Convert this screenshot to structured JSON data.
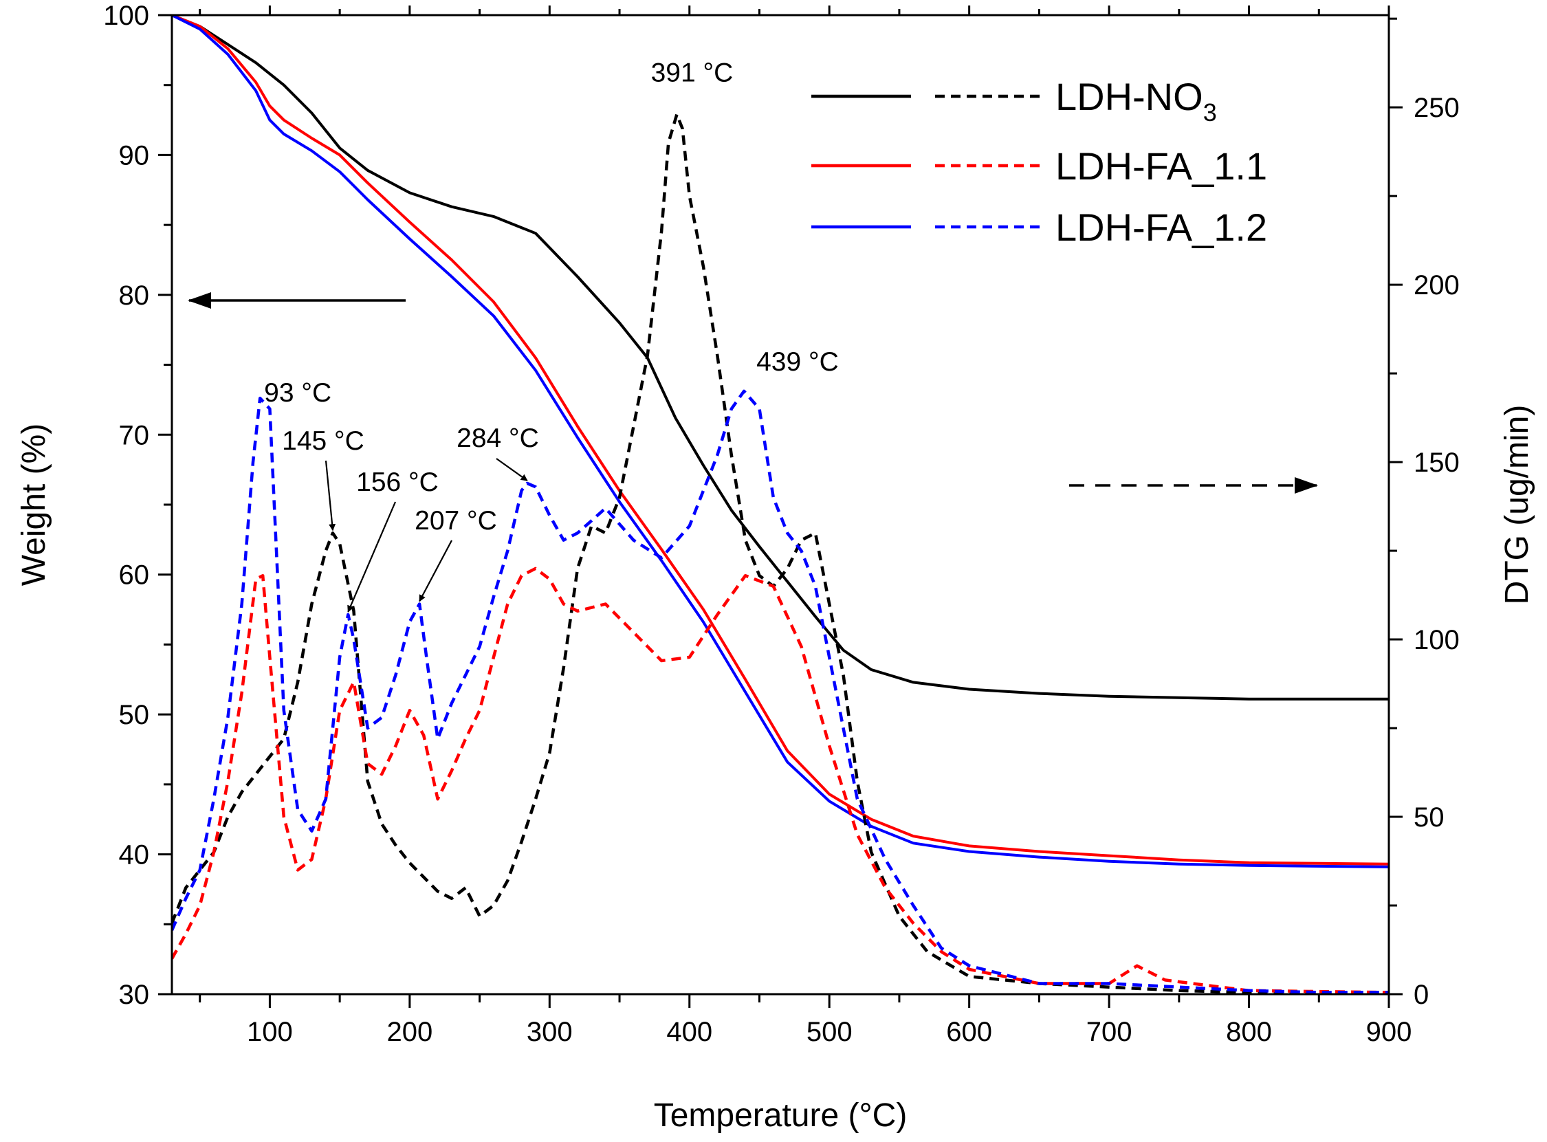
{
  "chart_data": {
    "type": "line",
    "title": "",
    "xlabel": "Temperature (°C)",
    "ylabel": "Weight (%)",
    "y2label": "DTG (ug/min)",
    "xlim": [
      30,
      900
    ],
    "ylim": [
      30,
      100
    ],
    "y2lim": [
      0,
      276
    ],
    "x_ticks": [
      100,
      200,
      300,
      400,
      500,
      600,
      700,
      800,
      900
    ],
    "y_ticks": [
      30,
      40,
      50,
      60,
      70,
      80,
      90,
      100
    ],
    "y2_ticks": [
      0,
      50,
      100,
      150,
      200,
      250
    ],
    "grid": false,
    "legend_position": "top-right",
    "colors": {
      "LDH-NO3": "#000000",
      "LDH-FA_1.1": "#ff0000",
      "LDH-FA_1.2": "#0000ff"
    },
    "series": [
      {
        "name": "LDH-NO3",
        "kind": "TG",
        "axis": "left",
        "x": [
          30,
          50,
          70,
          90,
          110,
          130,
          150,
          170,
          200,
          230,
          260,
          290,
          320,
          350,
          370,
          390,
          410,
          430,
          450,
          470,
          490,
          510,
          530,
          560,
          600,
          650,
          700,
          750,
          800,
          900
        ],
        "y": [
          100,
          99.2,
          97.9,
          96.6,
          95,
          93,
          90.5,
          88.9,
          87.3,
          86.3,
          85.6,
          84.4,
          81.3,
          78,
          75.5,
          71.2,
          67.8,
          64.6,
          62,
          59.5,
          57,
          54.6,
          53.2,
          52.3,
          51.8,
          51.5,
          51.3,
          51.2,
          51.1,
          51.1
        ]
      },
      {
        "name": "LDH-FA_1.1",
        "kind": "TG",
        "axis": "left",
        "x": [
          30,
          50,
          70,
          90,
          100,
          110,
          130,
          150,
          170,
          200,
          230,
          260,
          290,
          320,
          350,
          380,
          410,
          440,
          470,
          500,
          530,
          560,
          600,
          650,
          700,
          750,
          800,
          900
        ],
        "y": [
          100,
          99.2,
          97.6,
          95.2,
          93.5,
          92.5,
          91.2,
          90,
          88,
          85.2,
          82.5,
          79.5,
          75.5,
          70.6,
          66,
          61.8,
          57.5,
          52.5,
          47.4,
          44.3,
          42.5,
          41.3,
          40.6,
          40.2,
          39.9,
          39.6,
          39.4,
          39.3
        ]
      },
      {
        "name": "LDH-FA_1.2",
        "kind": "TG",
        "axis": "left",
        "x": [
          30,
          50,
          70,
          90,
          100,
          110,
          130,
          150,
          170,
          200,
          230,
          260,
          290,
          320,
          350,
          380,
          410,
          440,
          470,
          500,
          530,
          560,
          600,
          650,
          700,
          750,
          800,
          900
        ],
        "y": [
          100,
          99,
          97.2,
          94.6,
          92.5,
          91.5,
          90.3,
          88.8,
          86.8,
          84,
          81.3,
          78.5,
          74.6,
          69.8,
          65.2,
          61,
          56.6,
          51.6,
          46.6,
          43.8,
          42,
          40.8,
          40.2,
          39.8,
          39.5,
          39.3,
          39.2,
          39.1
        ]
      },
      {
        "name": "LDH-NO3",
        "kind": "DTG",
        "axis": "right",
        "x": [
          30,
          40,
          60,
          70,
          80,
          90,
          100,
          110,
          120,
          130,
          140,
          145,
          150,
          160,
          170,
          180,
          190,
          200,
          210,
          220,
          230,
          240,
          250,
          260,
          270,
          280,
          290,
          300,
          310,
          320,
          330,
          340,
          350,
          360,
          370,
          380,
          385,
          391,
          395,
          400,
          410,
          420,
          430,
          440,
          450,
          460,
          470,
          480,
          490,
          500,
          510,
          520,
          530,
          550,
          570,
          600,
          650,
          700,
          750,
          800,
          850,
          900
        ],
        "y": [
          20,
          30,
          40,
          50,
          57,
          62,
          67,
          72,
          88,
          110,
          125,
          130,
          127,
          108,
          60,
          48,
          42,
          37,
          33,
          29,
          27,
          30,
          22,
          25,
          32,
          43,
          55,
          68,
          92,
          120,
          132,
          130,
          140,
          160,
          180,
          215,
          240,
          248,
          244,
          225,
          205,
          180,
          152,
          128,
          118,
          115,
          120,
          128,
          130,
          110,
          90,
          60,
          40,
          22,
          12,
          5,
          3,
          2,
          1,
          0.5,
          0.3,
          0.5
        ]
      },
      {
        "name": "LDH-FA_1.1",
        "kind": "DTG",
        "axis": "right",
        "x": [
          30,
          40,
          50,
          60,
          70,
          80,
          90,
          95,
          100,
          110,
          120,
          130,
          140,
          150,
          160,
          170,
          180,
          190,
          200,
          210,
          220,
          230,
          240,
          250,
          260,
          270,
          280,
          290,
          300,
          310,
          320,
          340,
          360,
          380,
          400,
          420,
          440,
          460,
          480,
          500,
          520,
          540,
          560,
          580,
          600,
          650,
          700,
          720,
          740,
          800,
          900
        ],
        "y": [
          10,
          17,
          25,
          40,
          60,
          85,
          117,
          118,
          95,
          50,
          35,
          38,
          55,
          80,
          88,
          65,
          62,
          70,
          80,
          73,
          55,
          63,
          72,
          80,
          95,
          110,
          118,
          120,
          117,
          110,
          108,
          110,
          102,
          94,
          95,
          107,
          118,
          115,
          98,
          70,
          45,
          30,
          20,
          12,
          7,
          3,
          3,
          8,
          4,
          1,
          0.5
        ]
      },
      {
        "name": "LDH-FA_1.2",
        "kind": "DTG",
        "axis": "right",
        "x": [
          30,
          40,
          50,
          60,
          70,
          80,
          88,
          93,
          100,
          110,
          120,
          130,
          140,
          150,
          156,
          160,
          170,
          180,
          190,
          200,
          207,
          212,
          220,
          230,
          240,
          250,
          260,
          270,
          280,
          284,
          290,
          300,
          310,
          320,
          340,
          360,
          380,
          400,
          420,
          430,
          439,
          450,
          460,
          470,
          480,
          490,
          500,
          520,
          540,
          560,
          575,
          580,
          600,
          650,
          700,
          750,
          800,
          850,
          900
        ],
        "y": [
          18,
          27,
          35,
          55,
          78,
          110,
          150,
          168,
          165,
          80,
          52,
          46,
          55,
          95,
          107,
          100,
          75,
          78,
          90,
          105,
          110,
          95,
          72,
          82,
          90,
          98,
          112,
          125,
          142,
          144,
          143,
          135,
          128,
          130,
          137,
          128,
          123,
          132,
          152,
          165,
          170,
          165,
          140,
          130,
          125,
          115,
          95,
          55,
          38,
          25,
          16,
          13,
          8,
          3,
          3,
          2,
          1,
          0.5,
          0.5
        ]
      }
    ],
    "annotations": [
      {
        "text": "391 °C",
        "x": 391,
        "series": "LDH-NO3",
        "arrow": false
      },
      {
        "text": "439 °C",
        "x": 439,
        "series": "LDH-FA_1.2",
        "arrow": false
      },
      {
        "text": "93 °C",
        "x": 93,
        "series": "LDH-FA_1.2",
        "arrow": false
      },
      {
        "text": "145 °C",
        "x": 145,
        "series": "LDH-NO3",
        "arrow": true
      },
      {
        "text": "156 °C",
        "x": 156,
        "series": "LDH-FA_1.2",
        "arrow": true
      },
      {
        "text": "207 °C",
        "x": 207,
        "series": "LDH-FA_1.2",
        "arrow": true
      },
      {
        "text": "284 °C",
        "x": 284,
        "series": "LDH-FA_1.2",
        "arrow": true
      }
    ],
    "axis_indicators": [
      {
        "direction": "left",
        "style": "solid",
        "meaning": "TG curves read on left axis"
      },
      {
        "direction": "right",
        "style": "dashed",
        "meaning": "DTG curves read on right axis"
      }
    ],
    "legend": [
      {
        "name": "LDH-NO3",
        "label_main": "LDH-NO",
        "label_sub": "3"
      },
      {
        "name": "LDH-FA_1.1",
        "label_main": "LDH-FA_1.1",
        "label_sub": ""
      },
      {
        "name": "LDH-FA_1.2",
        "label_main": "LDH-FA_1.2",
        "label_sub": ""
      }
    ]
  }
}
